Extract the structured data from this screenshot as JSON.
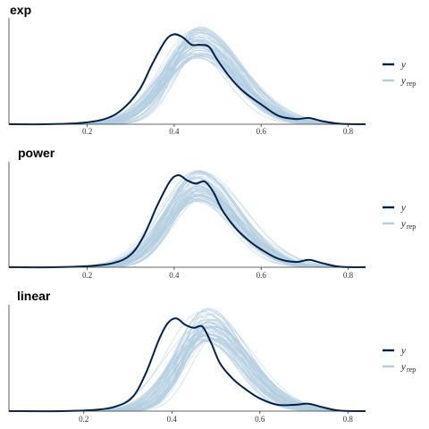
{
  "colors": {
    "y": "#011f4b",
    "yrep": "#b3cde0",
    "axis": "#333333",
    "background": "#ffffff"
  },
  "legend": {
    "y_label": "y",
    "yrep_label": "y",
    "yrep_subscript": "rep"
  },
  "chart_data": [
    {
      "type": "line",
      "title": "exp",
      "xlabel": "",
      "ylabel": "",
      "xlim": [
        0.02,
        0.84
      ],
      "x_ticks": [
        0.2,
        0.4,
        0.6,
        0.8
      ],
      "x_tick_labels": [
        "0.2",
        "0.4",
        "0.6",
        "0.8"
      ],
      "grid": false,
      "legend_position": "right",
      "series": [
        {
          "name": "y",
          "x": [
            0.02,
            0.1,
            0.18,
            0.24,
            0.28,
            0.32,
            0.35,
            0.38,
            0.4,
            0.42,
            0.44,
            0.46,
            0.48,
            0.5,
            0.53,
            0.56,
            0.6,
            0.64,
            0.68,
            0.71,
            0.74,
            0.78,
            0.84
          ],
          "y": [
            0.0,
            0.0,
            0.01,
            0.05,
            0.14,
            0.33,
            0.58,
            0.8,
            0.86,
            0.83,
            0.76,
            0.76,
            0.74,
            0.61,
            0.44,
            0.31,
            0.19,
            0.08,
            0.05,
            0.06,
            0.03,
            0.005,
            0.0
          ]
        }
      ],
      "replicates": {
        "name": "y_rep",
        "count": 60,
        "mean_center": [
          0.445,
          0.465
        ],
        "sd_range": [
          0.07,
          0.09
        ],
        "peak_height_range": [
          0.62,
          0.94
        ]
      }
    },
    {
      "type": "line",
      "title": "power",
      "xlabel": "",
      "ylabel": "",
      "xlim": [
        0.02,
        0.84
      ],
      "x_ticks": [
        0.2,
        0.4,
        0.6,
        0.8
      ],
      "x_tick_labels": [
        "0.2",
        "0.4",
        "0.6",
        "0.8"
      ],
      "grid": false,
      "legend_position": "right",
      "series": [
        {
          "name": "y",
          "x": [
            0.02,
            0.12,
            0.2,
            0.26,
            0.3,
            0.33,
            0.36,
            0.39,
            0.41,
            0.43,
            0.45,
            0.47,
            0.49,
            0.51,
            0.54,
            0.57,
            0.6,
            0.64,
            0.68,
            0.71,
            0.74,
            0.78,
            0.84
          ],
          "y": [
            0.0,
            0.0,
            0.01,
            0.04,
            0.12,
            0.3,
            0.58,
            0.82,
            0.88,
            0.83,
            0.8,
            0.82,
            0.72,
            0.55,
            0.38,
            0.26,
            0.17,
            0.08,
            0.05,
            0.07,
            0.04,
            0.005,
            0.0
          ]
        }
      ],
      "replicates": {
        "name": "y_rep",
        "count": 60,
        "mean_center": [
          0.445,
          0.465
        ],
        "sd_range": [
          0.07,
          0.09
        ],
        "peak_height_range": [
          0.62,
          0.94
        ]
      }
    },
    {
      "type": "line",
      "title": "linear",
      "xlabel": "",
      "ylabel": "",
      "xlim": [
        0.03,
        0.84
      ],
      "x_ticks": [
        0.2,
        0.4,
        0.6,
        0.8
      ],
      "x_tick_labels": [
        "0.2",
        "0.4",
        "0.6",
        "0.8"
      ],
      "grid": false,
      "legend_position": "right",
      "series": [
        {
          "name": "y",
          "x": [
            0.03,
            0.15,
            0.22,
            0.27,
            0.31,
            0.34,
            0.37,
            0.39,
            0.41,
            0.43,
            0.45,
            0.47,
            0.49,
            0.51,
            0.54,
            0.57,
            0.6,
            0.64,
            0.68,
            0.71,
            0.74,
            0.78,
            0.84
          ],
          "y": [
            0.0,
            0.0,
            0.01,
            0.04,
            0.13,
            0.35,
            0.67,
            0.83,
            0.88,
            0.82,
            0.79,
            0.8,
            0.64,
            0.45,
            0.3,
            0.2,
            0.12,
            0.06,
            0.06,
            0.07,
            0.04,
            0.005,
            0.0
          ]
        }
      ],
      "replicates": {
        "name": "y_rep",
        "count": 60,
        "mean_center": [
          0.465,
          0.495
        ],
        "sd_range": [
          0.065,
          0.085
        ],
        "peak_height_range": [
          0.66,
          0.98
        ]
      }
    }
  ]
}
